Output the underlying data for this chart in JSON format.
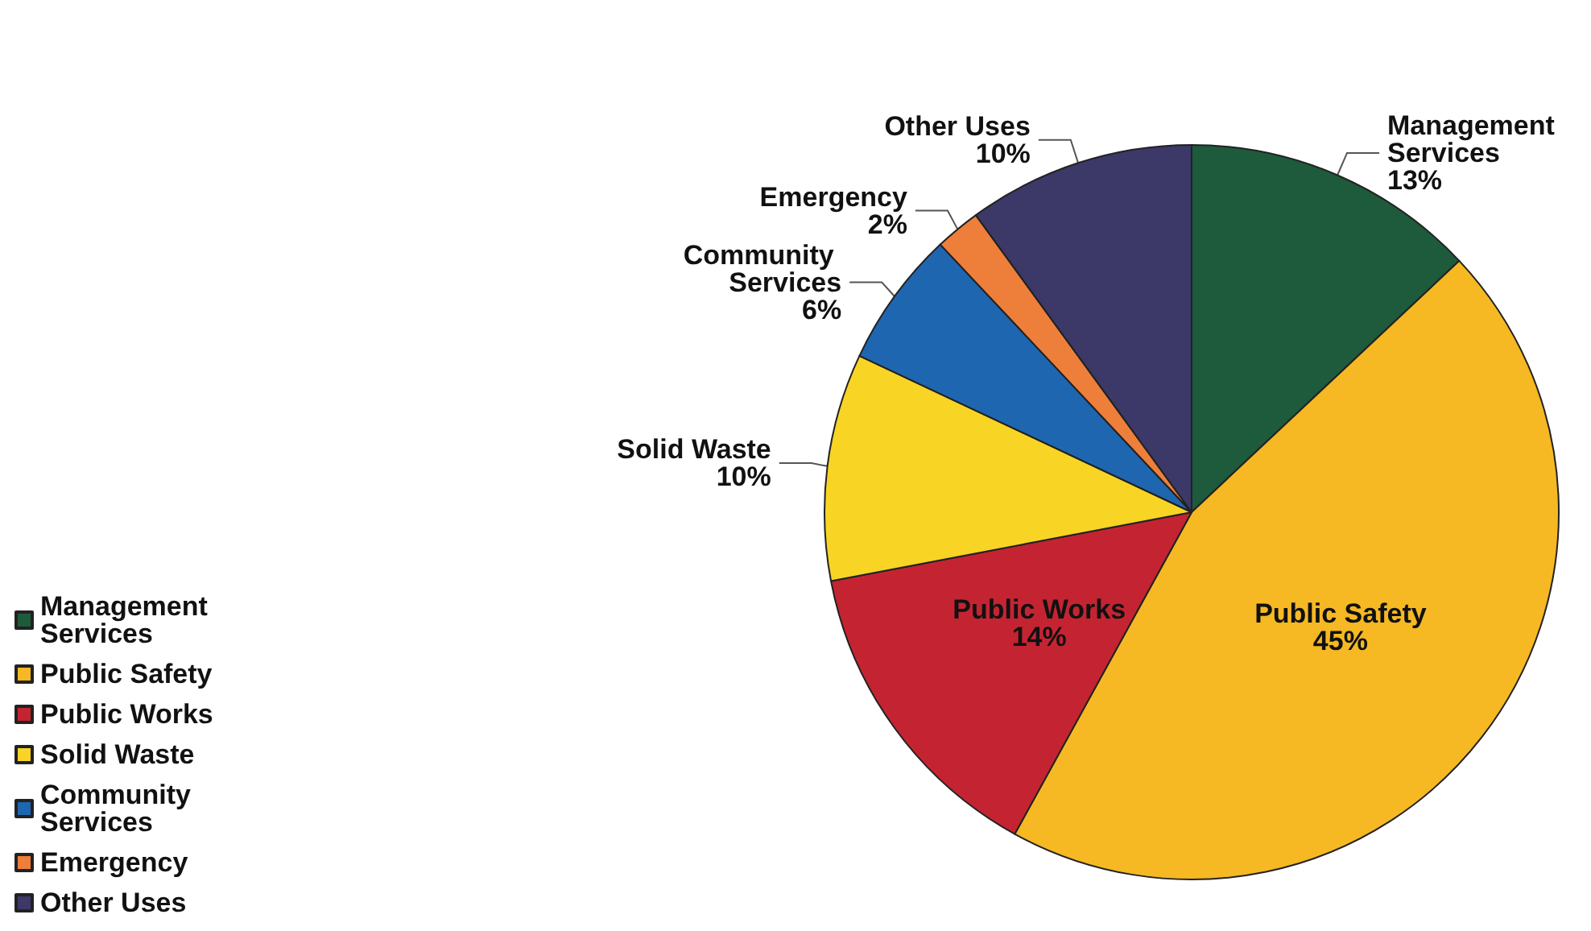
{
  "chart_data": {
    "type": "pie",
    "categories": [
      "Management Services",
      "Public Safety",
      "Public Works",
      "Solid Waste",
      "Community Services",
      "Emergency",
      "Other Uses"
    ],
    "values": [
      13,
      45,
      14,
      10,
      6,
      2,
      10
    ],
    "value_labels": [
      "13%",
      "45%",
      "14%",
      "10%",
      "6%",
      "2%",
      "10%"
    ],
    "colors": [
      "#1e5a3c",
      "#f6b823",
      "#c42431",
      "#f8d425",
      "#1f66b0",
      "#ee7f3a",
      "#3c3868"
    ],
    "legend": "bottom left"
  }
}
